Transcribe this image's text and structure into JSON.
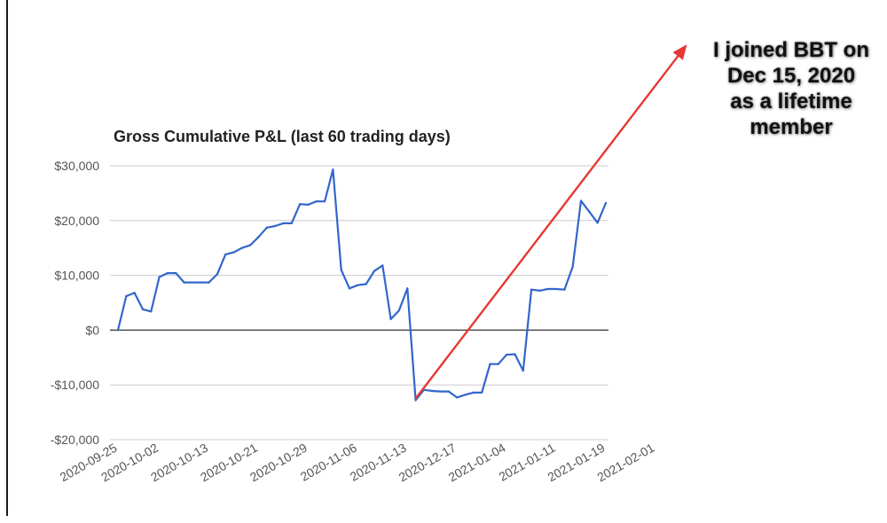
{
  "chart_data": {
    "type": "line",
    "title": "Gross Cumulative P&L (last 60 trading days)",
    "xlabel": "",
    "ylabel": "",
    "ylim": [
      -20000,
      30000
    ],
    "y_ticks": [
      30000,
      20000,
      10000,
      0,
      -10000,
      -20000
    ],
    "y_tick_labels": [
      "$30,000",
      "$20,000",
      "$10,000",
      "$0",
      "-$10,000",
      "-$20,000"
    ],
    "x_tick_labels": [
      "2020-09-25",
      "2020-10-02",
      "2020-10-13",
      "2020-10-21",
      "2020-10-29",
      "2020-11-06",
      "2020-11-13",
      "2020-12-17",
      "2021-01-04",
      "2021-01-11",
      "2021-01-19",
      "2021-02-01"
    ],
    "x_tick_indices": [
      0,
      5,
      11,
      17,
      23,
      29,
      35,
      41,
      47,
      53,
      59,
      65
    ],
    "grid": true,
    "series": [
      {
        "color": "#3366cc",
        "values": [
          0,
          6200,
          6800,
          3800,
          3400,
          9700,
          10400,
          10400,
          8700,
          8700,
          8700,
          8700,
          10200,
          13800,
          14200,
          15000,
          15500,
          17000,
          18700,
          19000,
          19500,
          19500,
          23000,
          22900,
          23500,
          23500,
          29300,
          11000,
          7600,
          8200,
          8400,
          10800,
          11800,
          2000,
          3600,
          7600,
          -12800,
          -10900,
          -11100,
          -11200,
          -11200,
          -12300,
          -11800,
          -11400,
          -11400,
          -6200,
          -6200,
          -4500,
          -4400,
          -7400,
          7400,
          7200,
          7500,
          7500,
          7400,
          11600,
          23600,
          21600,
          19600,
          23200
        ]
      }
    ],
    "annotation": {
      "lines": [
        "I joined BBT on",
        "Dec 15, 2020",
        "as a lifetime",
        "member"
      ],
      "arrow_color": "#e53935",
      "arrow_from_index": 36,
      "arrow_from_value": -12500
    }
  }
}
